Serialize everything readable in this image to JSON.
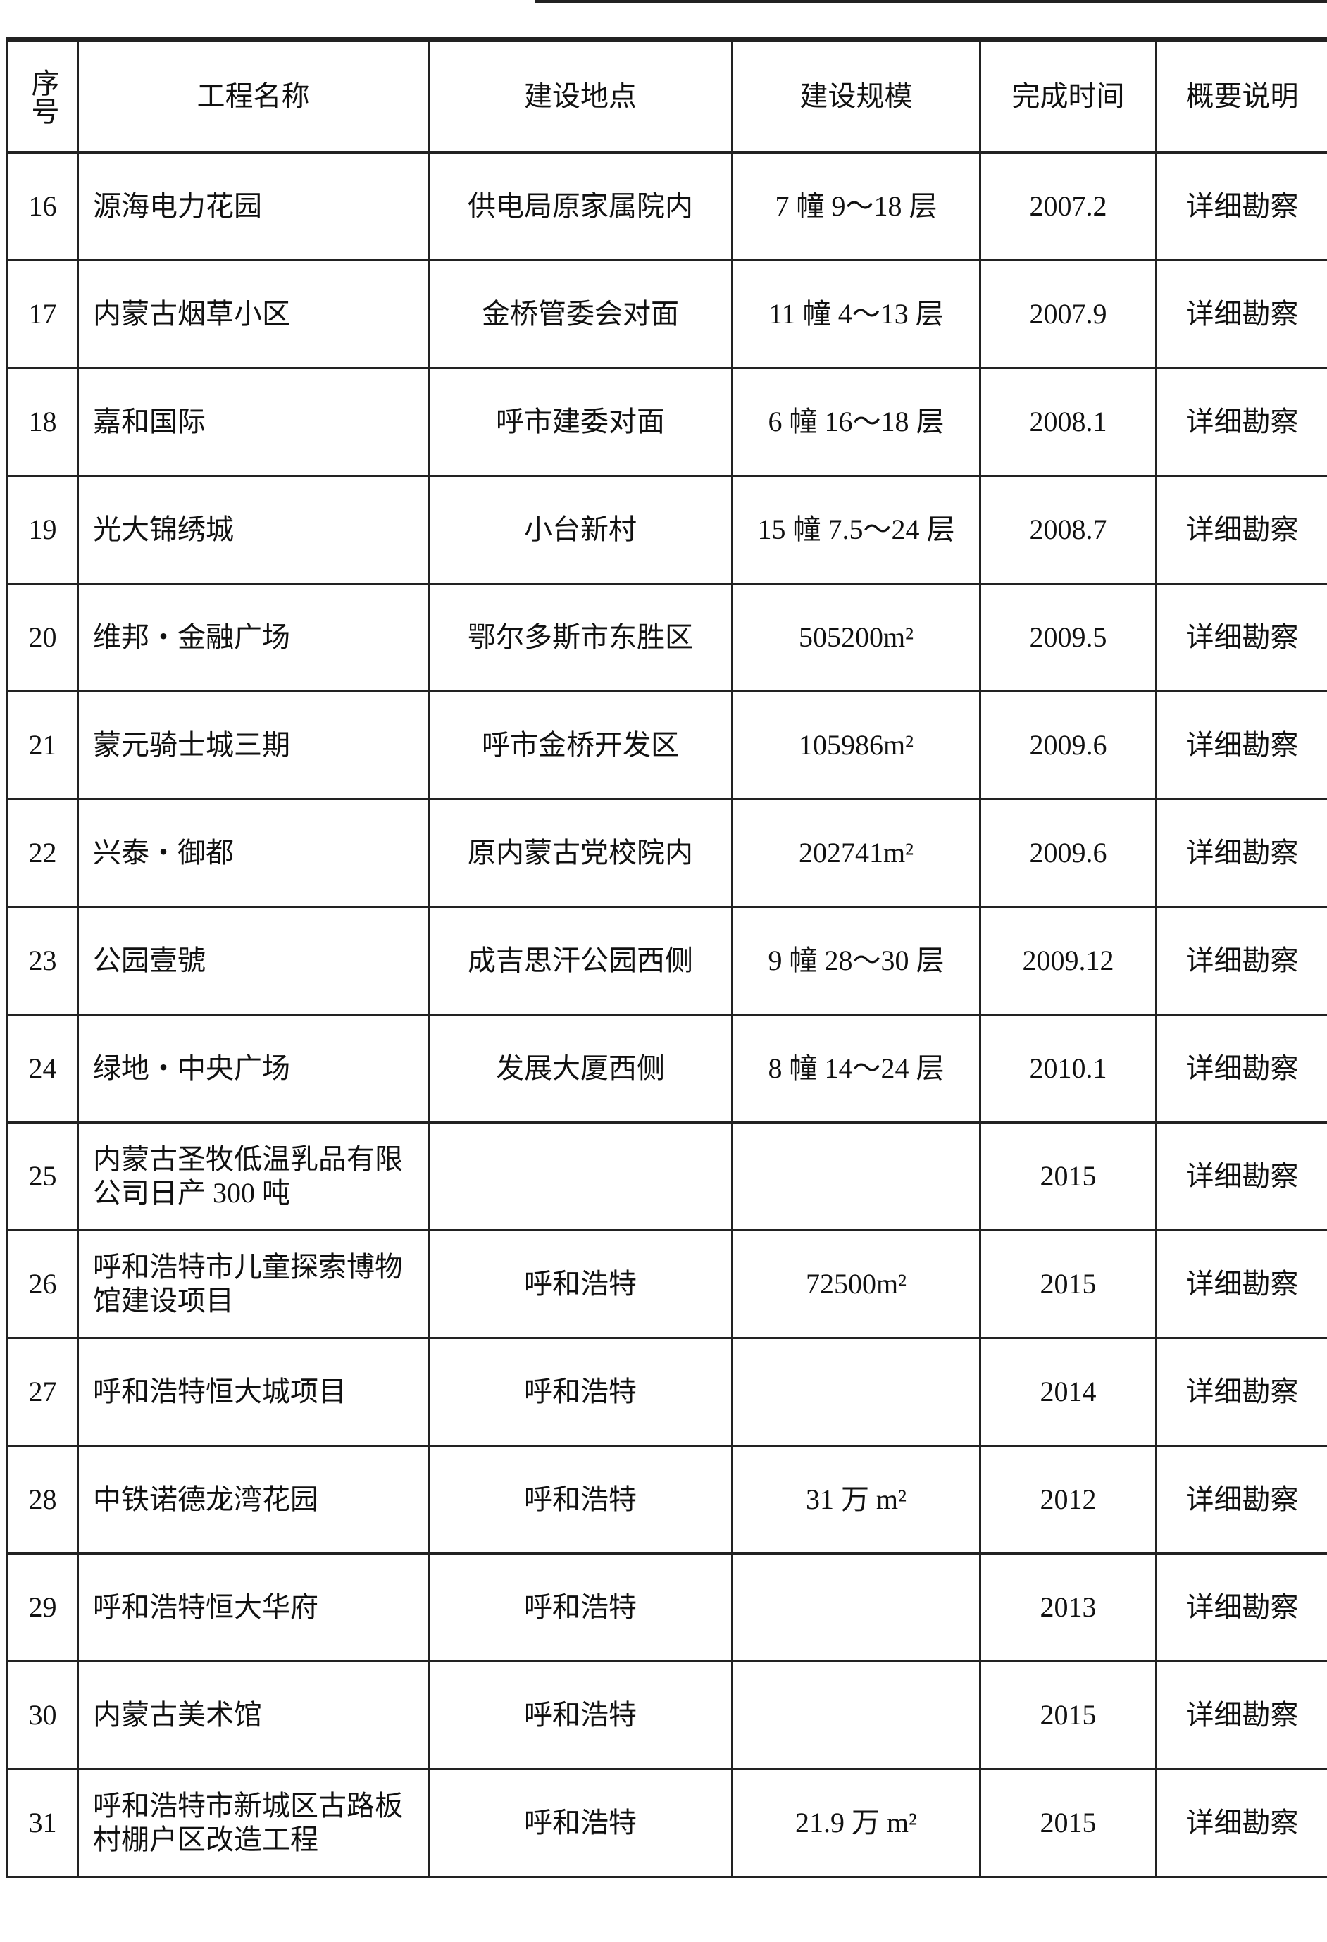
{
  "table": {
    "headers": [
      "序号",
      "工程名称",
      "建设地点",
      "建设规模",
      "完成时间",
      "概要说明"
    ],
    "rows": [
      {
        "no": "16",
        "name": "源海电力花园",
        "location": "供电局原家属院内",
        "scale": "7 幢 9～18 层",
        "completed": "2007.2",
        "note": "详细勘察"
      },
      {
        "no": "17",
        "name": "内蒙古烟草小区",
        "location": "金桥管委会对面",
        "scale": "11 幢 4～13 层",
        "completed": "2007.9",
        "note": "详细勘察"
      },
      {
        "no": "18",
        "name": "嘉和国际",
        "location": "呼市建委对面",
        "scale": "6 幢 16～18 层",
        "completed": "2008.1",
        "note": "详细勘察"
      },
      {
        "no": "19",
        "name": "光大锦绣城",
        "location": "小台新村",
        "scale": "15 幢 7.5～24 层",
        "completed": "2008.7",
        "note": "详细勘察"
      },
      {
        "no": "20",
        "name": "维邦・金融广场",
        "location": "鄂尔多斯市东胜区",
        "scale": "505200m²",
        "completed": "2009.5",
        "note": "详细勘察"
      },
      {
        "no": "21",
        "name": "蒙元骑士城三期",
        "location": "呼市金桥开发区",
        "scale": "105986m²",
        "completed": "2009.6",
        "note": "详细勘察"
      },
      {
        "no": "22",
        "name": "兴泰・御都",
        "location": "原内蒙古党校院内",
        "scale": "202741m²",
        "completed": "2009.6",
        "note": "详细勘察"
      },
      {
        "no": "23",
        "name": "公园壹號",
        "location": "成吉思汗公园西侧",
        "scale": "9 幢 28～30 层",
        "completed": "2009.12",
        "note": "详细勘察"
      },
      {
        "no": "24",
        "name": "绿地・中央广场",
        "location": "发展大厦西侧",
        "scale": "8 幢 14～24 层",
        "completed": "2010.1",
        "note": "详细勘察"
      },
      {
        "no": "25",
        "name": "内蒙古圣牧低温乳品有限公司日产 300 吨",
        "location": "",
        "scale": "",
        "completed": "2015",
        "note": "详细勘察"
      },
      {
        "no": "26",
        "name": "呼和浩特市儿童探索博物馆建设项目",
        "location": "呼和浩特",
        "scale": "72500m²",
        "completed": "2015",
        "note": "详细勘察"
      },
      {
        "no": "27",
        "name": "呼和浩特恒大城项目",
        "location": "呼和浩特",
        "scale": "",
        "completed": "2014",
        "note": "详细勘察"
      },
      {
        "no": "28",
        "name": "中铁诺德龙湾花园",
        "location": "呼和浩特",
        "scale": "31 万 m²",
        "completed": "2012",
        "note": "详细勘察"
      },
      {
        "no": "29",
        "name": "呼和浩特恒大华府",
        "location": "呼和浩特",
        "scale": "",
        "completed": "2013",
        "note": "详细勘察"
      },
      {
        "no": "30",
        "name": "内蒙古美术馆",
        "location": "呼和浩特",
        "scale": "",
        "completed": "2015",
        "note": "详细勘察"
      },
      {
        "no": "31",
        "name": "呼和浩特市新城区古路板村棚户区改造工程",
        "location": "呼和浩特",
        "scale": "21.9 万 m²",
        "completed": "2015",
        "note": "详细勘察"
      }
    ]
  }
}
